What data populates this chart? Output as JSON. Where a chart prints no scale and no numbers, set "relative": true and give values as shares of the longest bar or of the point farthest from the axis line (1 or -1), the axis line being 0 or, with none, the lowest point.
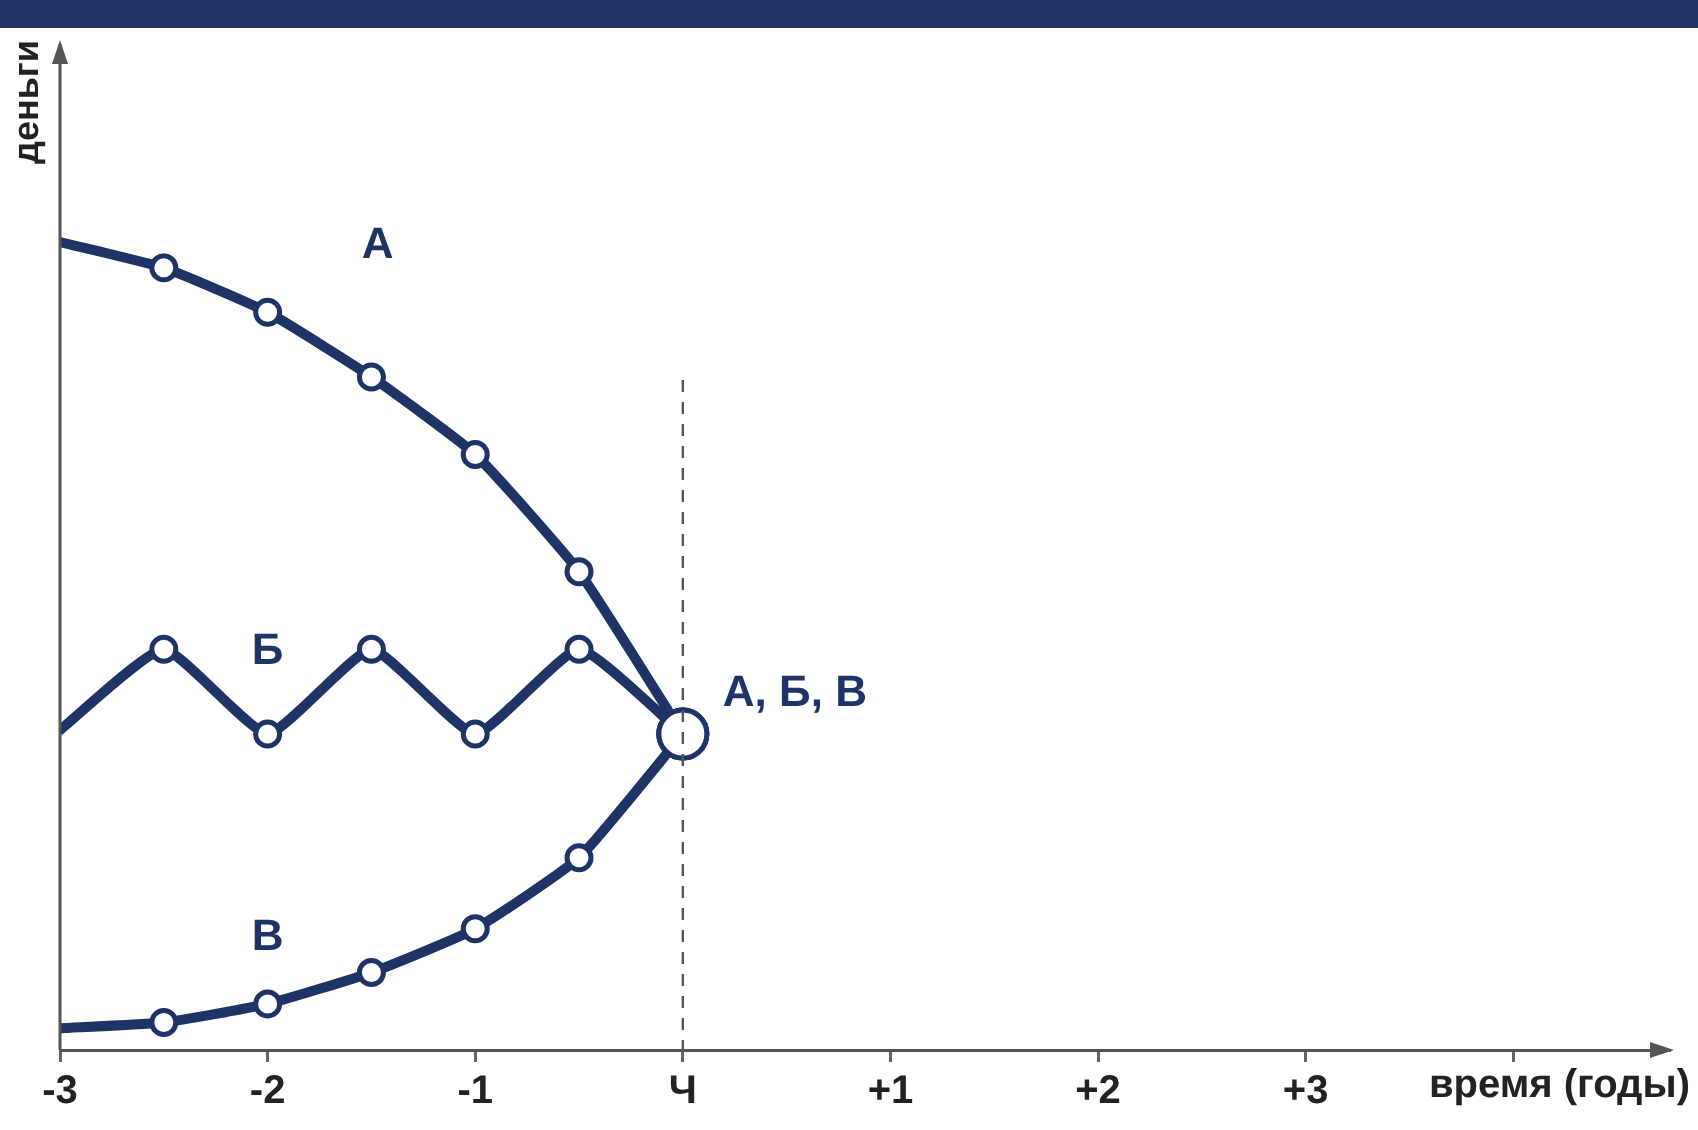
{
  "chart_data": {
    "type": "line",
    "relative": true,
    "xlabel": "время (годы)",
    "ylabel": "деньги",
    "x": [
      -3,
      -2.5,
      -2,
      -1.5,
      -1,
      -0.5,
      0
    ],
    "xlim": [
      -3,
      4.75
    ],
    "xticks": [
      -3,
      -2,
      -1,
      {
        "value": 0,
        "label": "Ч"
      },
      {
        "value": 1,
        "label": "+1"
      },
      {
        "value": 2,
        "label": "+2"
      },
      {
        "value": 3,
        "label": "+3"
      },
      {
        "value": 4,
        "label": null
      }
    ],
    "series": [
      {
        "name": "А",
        "color": "#1f3466",
        "values": [
          1,
          0.968,
          0.913,
          0.833,
          0.737,
          0.592,
          0.391
        ]
      },
      {
        "name": "Б",
        "color": "#1f3466",
        "values": [
          0.396,
          0.496,
          0.391,
          0.496,
          0.391,
          0.496,
          0.391
        ]
      },
      {
        "name": "В",
        "color": "#1f3466",
        "values": [
          0.027,
          0.034,
          0.057,
          0.096,
          0.15,
          0.238,
          0.391
        ]
      }
    ],
    "annotations": [
      {
        "text": "А, Б, В",
        "x": 0,
        "y": 0.391
      }
    ],
    "ref_lines": [
      {
        "axis": "x",
        "value": 0,
        "color": "#555555",
        "line_style": "dashed"
      }
    ],
    "marker": "circle",
    "legend": false,
    "grid": false
  }
}
